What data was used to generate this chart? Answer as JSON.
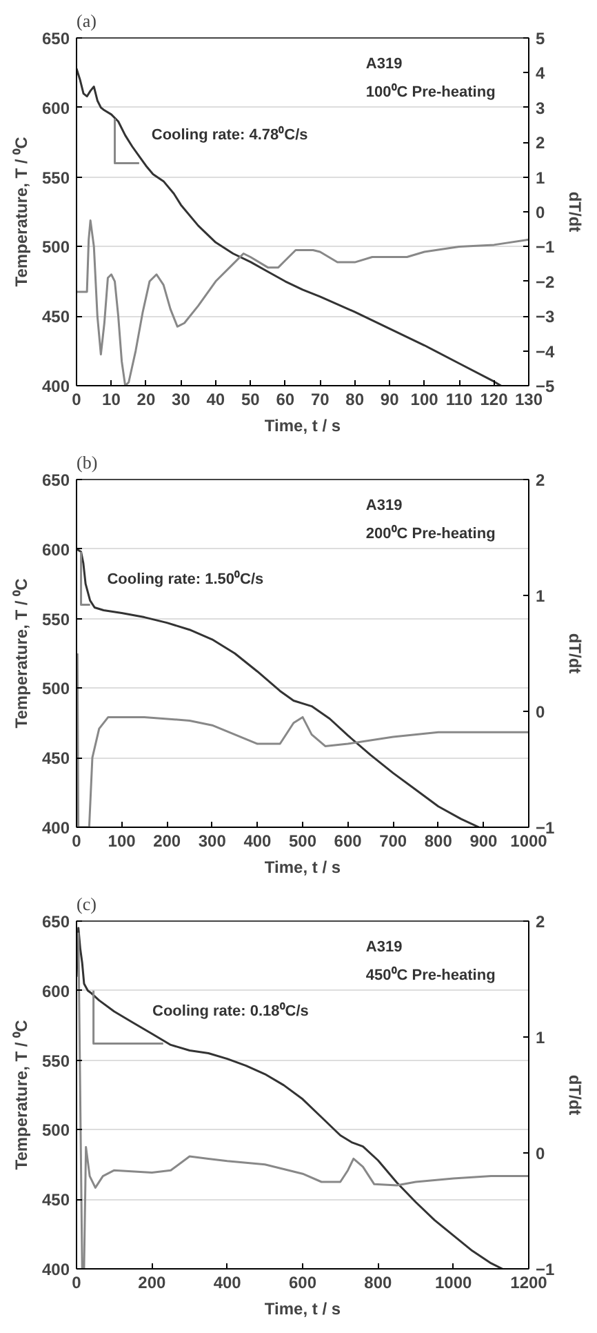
{
  "chart_data": [
    {
      "type": "line",
      "title": "(a)",
      "xlabel": "Time, t / s",
      "ylabel": "Temperature, T / ⁰C",
      "y2label": "dT/dt",
      "xlim": [
        0,
        130
      ],
      "xticks": [
        0,
        10,
        20,
        30,
        40,
        50,
        60,
        70,
        80,
        90,
        100,
        110,
        120,
        130
      ],
      "ylim": [
        400,
        650
      ],
      "yticks": [
        400,
        450,
        500,
        550,
        600,
        650
      ],
      "y2lim": [
        -5,
        5
      ],
      "y2ticks": [
        -5,
        -4,
        -3,
        -2,
        -1,
        0,
        1,
        2,
        3,
        4,
        5
      ],
      "grid": "y",
      "line_style": "solid",
      "marker": "none",
      "annotations": [
        "A319",
        "100⁰C Pre-heating",
        {
          "text": "Cooling rate: 4.78⁰C/s",
          "x": 16,
          "y": 572
        }
      ],
      "series": [
        {
          "color": "#333333",
          "x": [
            0,
            1,
            2,
            3,
            4,
            5,
            6,
            7,
            8,
            10,
            12,
            14,
            16,
            18,
            20,
            22,
            25,
            28,
            30,
            35,
            40,
            45,
            50,
            55,
            60,
            65,
            70,
            80,
            90,
            100,
            110,
            120,
            122
          ],
          "values": [
            628,
            620,
            610,
            608,
            612,
            615,
            605,
            600,
            598,
            595,
            590,
            580,
            572,
            565,
            558,
            552,
            547,
            538,
            530,
            515,
            503,
            495,
            489,
            482,
            475,
            469,
            464,
            453,
            441,
            429,
            416,
            403,
            400
          ]
        },
        {
          "color": "#888888",
          "axis": "y2",
          "x": [
            0,
            3,
            3.5,
            4,
            5,
            6,
            7,
            8,
            9,
            10,
            11,
            12,
            13,
            14,
            15,
            17,
            19,
            21,
            23,
            25,
            27,
            29,
            31,
            35,
            40,
            45,
            48,
            50,
            55,
            58,
            60,
            63,
            68,
            70,
            75,
            80,
            85,
            90,
            95,
            100,
            110,
            120,
            130
          ],
          "values": [
            -2.3,
            -2.3,
            -0.8,
            -0.25,
            -1,
            -3,
            -4.1,
            -3.2,
            -1.9,
            -1.8,
            -2,
            -3,
            -4.3,
            -5,
            -4.9,
            -4,
            -2.9,
            -2,
            -1.8,
            -2.1,
            -2.8,
            -3.3,
            -3.2,
            -2.7,
            -2,
            -1.5,
            -1.2,
            -1.3,
            -1.6,
            -1.6,
            -1.4,
            -1.1,
            -1.1,
            -1.15,
            -1.45,
            -1.45,
            -1.3,
            -1.3,
            -1.3,
            -1.15,
            -1,
            -0.95,
            -0.8
          ]
        },
        {
          "color": "#888888",
          "x": [
            11,
            11,
            18
          ],
          "values": [
            592,
            560,
            560
          ]
        }
      ]
    },
    {
      "type": "line",
      "title": "(b)",
      "xlabel": "Time, t / s",
      "ylabel": "Temperature, T / ⁰C",
      "y2label": "dT/dt",
      "xlim": [
        0,
        1000
      ],
      "xticks": [
        0,
        100,
        200,
        300,
        400,
        500,
        600,
        700,
        800,
        900,
        1000
      ],
      "ylim": [
        400,
        650
      ],
      "yticks": [
        400,
        450,
        500,
        550,
        600,
        650
      ],
      "y2lim": [
        -1,
        2
      ],
      "y2ticks": [
        -1,
        0,
        1,
        2
      ],
      "grid": "y",
      "line_style": "solid",
      "marker": "none",
      "annotations": [
        "A319",
        "200⁰C Pre-heating",
        {
          "text": "Cooling rate: 1.50⁰C/s",
          "x": 25,
          "y": 570
        }
      ],
      "series": [
        {
          "color": "#333333",
          "x": [
            0,
            10,
            15,
            20,
            30,
            40,
            60,
            100,
            150,
            200,
            250,
            300,
            350,
            400,
            450,
            480,
            520,
            560,
            600,
            650,
            700,
            750,
            800,
            850,
            890
          ],
          "values": [
            600,
            598,
            590,
            575,
            563,
            558,
            556,
            554,
            551,
            547,
            542,
            535,
            525,
            512,
            498,
            491,
            487,
            478,
            466,
            452,
            439,
            427,
            415,
            406,
            400
          ]
        },
        {
          "color": "#888888",
          "axis": "y2",
          "x": [
            2,
            4,
            28,
            35,
            50,
            70,
            150,
            250,
            300,
            350,
            400,
            450,
            480,
            500,
            520,
            550,
            600,
            700,
            800,
            900,
            1000
          ],
          "values": [
            0.5,
            -1,
            -1,
            -0.4,
            -0.15,
            -0.05,
            -0.05,
            -0.08,
            -0.12,
            -0.2,
            -0.28,
            -0.28,
            -0.1,
            -0.05,
            -0.2,
            -0.3,
            -0.28,
            -0.22,
            -0.18,
            -0.18,
            -0.18
          ]
        },
        {
          "color": "#888888",
          "x": [
            10,
            10,
            30
          ],
          "values": [
            598,
            560,
            560
          ]
        }
      ]
    },
    {
      "type": "line",
      "title": "(c)",
      "xlabel": "Time, t / s",
      "ylabel": "Temperature, T / ⁰C",
      "y2label": "dT/dt",
      "xlim": [
        0,
        1200
      ],
      "xticks": [
        0,
        200,
        400,
        600,
        800,
        1000,
        1200
      ],
      "ylim": [
        400,
        650
      ],
      "yticks": [
        400,
        450,
        500,
        550,
        600,
        650
      ],
      "y2lim": [
        -1,
        2
      ],
      "y2ticks": [
        -1,
        0,
        1,
        2
      ],
      "grid": "y",
      "line_style": "solid",
      "marker": "none",
      "annotations": [
        "A319",
        "450⁰C Pre-heating",
        {
          "text": "Cooling rate: 0.18⁰C/s",
          "x": 150,
          "y": 577
        }
      ],
      "series": [
        {
          "color": "#333333",
          "x": [
            0,
            5,
            10,
            15,
            20,
            30,
            40,
            60,
            100,
            150,
            200,
            250,
            300,
            350,
            400,
            450,
            500,
            550,
            600,
            650,
            700,
            730,
            760,
            800,
            850,
            900,
            950,
            1000,
            1050,
            1100,
            1130
          ],
          "values": [
            610,
            645,
            630,
            620,
            605,
            600,
            598,
            593,
            585,
            577,
            569,
            561,
            557,
            555,
            551,
            546,
            540,
            532,
            522,
            509,
            496,
            491,
            488,
            478,
            462,
            448,
            435,
            424,
            413,
            404,
            400
          ]
        },
        {
          "color": "#888888",
          "axis": "y2",
          "x": [
            5,
            15,
            20,
            25,
            35,
            50,
            70,
            100,
            200,
            250,
            300,
            350,
            400,
            500,
            600,
            650,
            700,
            720,
            735,
            760,
            790,
            850,
            900,
            1000,
            1100,
            1200
          ],
          "values": [
            1.9,
            -1,
            -1,
            0.05,
            -0.2,
            -0.3,
            -0.2,
            -0.15,
            -0.17,
            -0.15,
            -0.03,
            -0.05,
            -0.07,
            -0.1,
            -0.18,
            -0.25,
            -0.25,
            -0.15,
            -0.05,
            -0.12,
            -0.27,
            -0.28,
            -0.25,
            -0.22,
            -0.2,
            -0.2
          ]
        },
        {
          "color": "#888888",
          "x": [
            45,
            45,
            230
          ],
          "values": [
            600,
            562,
            562
          ]
        }
      ]
    }
  ]
}
